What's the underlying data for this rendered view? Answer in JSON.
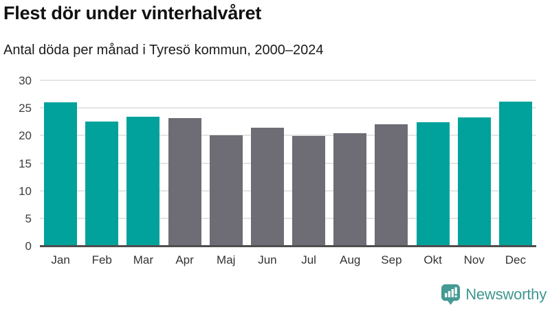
{
  "header": {
    "title": "Flest dör under vinterhalvåret",
    "subtitle": "Antal döda per månad i Tyresö kommun, 2000–2024"
  },
  "colors": {
    "highlight_bar": "#00a29b",
    "muted_bar": "#6e6c74",
    "gridline": "#e4e4e4",
    "axis_line": "#4d4d4d",
    "tick_text": "#3d3d3d",
    "title_text": "#111111",
    "brand_teal": "#3e968f"
  },
  "chart_data": {
    "type": "bar",
    "title": "Flest dör under vinterhalvåret",
    "subtitle": "Antal döda per månad i Tyresö kommun, 2000–2024",
    "categories": [
      "Jan",
      "Feb",
      "Mar",
      "Apr",
      "Maj",
      "Jun",
      "Jul",
      "Aug",
      "Sep",
      "Okt",
      "Nov",
      "Dec"
    ],
    "values": [
      26.0,
      22.5,
      23.4,
      23.1,
      20.1,
      21.4,
      19.9,
      20.4,
      22.0,
      22.4,
      23.3,
      26.2
    ],
    "highlighted_categories": [
      "Jan",
      "Feb",
      "Mar",
      "Okt",
      "Nov",
      "Dec"
    ],
    "xlabel": "",
    "ylabel": "",
    "ylim": [
      0,
      30
    ],
    "yticks": [
      0,
      5,
      10,
      15,
      20,
      25,
      30
    ],
    "grid": "horizontal",
    "legend": "none"
  },
  "footer": {
    "brand": "Newsworthy",
    "logo_icon": "newsworthy-bubble-chart-icon"
  }
}
